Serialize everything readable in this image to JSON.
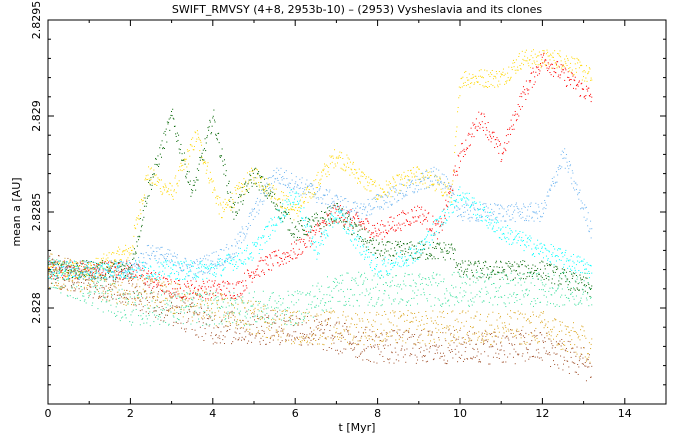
{
  "chart_data": {
    "type": "scatter",
    "title": "SWIFT_RMVSY (4+8, 2953b-10) – (2953) Vysheslavia and its clones",
    "xlabel": "t [Myr]",
    "ylabel": "mean a [AU]",
    "xlim": [
      0,
      15
    ],
    "ylim": [
      2.8275,
      2.8295
    ],
    "x_ticks": [
      0,
      2,
      4,
      6,
      8,
      10,
      12,
      14
    ],
    "x_tick_labels": [
      "0",
      "2",
      "4",
      "6",
      "8",
      "10",
      "12",
      "14"
    ],
    "y_ticks": [
      2.828,
      2.8285,
      2.829,
      2.8295
    ],
    "y_tick_labels": [
      "2.828",
      "2.8285",
      "2.829",
      "2.8295"
    ],
    "grid": false,
    "series": [
      {
        "color": "#FFD700",
        "points": [
          [
            0,
            2.8282
          ],
          [
            1,
            2.8282
          ],
          [
            2,
            2.8283
          ],
          [
            2.4,
            2.8287
          ],
          [
            3,
            2.8286
          ],
          [
            3.6,
            2.8289
          ],
          [
            4.2,
            2.8285
          ],
          [
            5,
            2.8287
          ],
          [
            6,
            2.8285
          ],
          [
            7,
            2.8288
          ],
          [
            8,
            2.8286
          ],
          [
            9,
            2.8287
          ],
          [
            9.8,
            2.8286
          ],
          [
            10,
            2.8292
          ],
          [
            11,
            2.8292
          ],
          [
            11.5,
            2.8293
          ],
          [
            12.5,
            2.8293
          ],
          [
            13.2,
            2.8292
          ]
        ]
      },
      {
        "color": "#FF0000",
        "points": [
          [
            0,
            2.8282
          ],
          [
            2,
            2.8282
          ],
          [
            3,
            2.8281
          ],
          [
            4.6,
            2.8281
          ],
          [
            5,
            2.8282
          ],
          [
            6,
            2.8283
          ],
          [
            7,
            2.8285
          ],
          [
            8,
            2.8284
          ],
          [
            9,
            2.8285
          ],
          [
            9.5,
            2.8284
          ],
          [
            10,
            2.8288
          ],
          [
            10.5,
            2.829
          ],
          [
            11,
            2.8288
          ],
          [
            11.5,
            2.8291
          ],
          [
            12,
            2.8293
          ],
          [
            13.2,
            2.8291
          ]
        ]
      },
      {
        "color": "#006400",
        "points": [
          [
            0,
            2.8282
          ],
          [
            2,
            2.8282
          ],
          [
            2.4,
            2.8286
          ],
          [
            3,
            2.829
          ],
          [
            3.5,
            2.8286
          ],
          [
            4,
            2.829
          ],
          [
            4.5,
            2.8285
          ],
          [
            5,
            2.8287
          ],
          [
            6,
            2.8284
          ],
          [
            7,
            2.8285
          ],
          [
            8,
            2.8283
          ],
          [
            9,
            2.8283
          ],
          [
            9.8,
            2.8283
          ],
          [
            10,
            2.8282
          ],
          [
            11,
            2.8282
          ],
          [
            12,
            2.8282
          ],
          [
            13.2,
            2.8281
          ]
        ]
      },
      {
        "color": "#6EB4F0",
        "points": [
          [
            0,
            2.8282
          ],
          [
            2,
            2.8282
          ],
          [
            2.5,
            2.8283
          ],
          [
            3.5,
            2.8282
          ],
          [
            4.5,
            2.8283
          ],
          [
            5.5,
            2.8287
          ],
          [
            6.5,
            2.8286
          ],
          [
            7.5,
            2.8285
          ],
          [
            8.5,
            2.8286
          ],
          [
            9.5,
            2.8287
          ],
          [
            10,
            2.8285
          ],
          [
            11,
            2.8285
          ],
          [
            12,
            2.8285
          ],
          [
            12.5,
            2.8288
          ],
          [
            13.2,
            2.8284
          ]
        ]
      },
      {
        "color": "#00FFFF",
        "points": [
          [
            0,
            2.8282
          ],
          [
            2,
            2.8282
          ],
          [
            3,
            2.8282
          ],
          [
            4,
            2.8282
          ],
          [
            5,
            2.8283
          ],
          [
            6,
            2.8286
          ],
          [
            6.5,
            2.8283
          ],
          [
            7,
            2.8285
          ],
          [
            8,
            2.8282
          ],
          [
            9,
            2.8283
          ],
          [
            10,
            2.8286
          ],
          [
            11,
            2.8284
          ],
          [
            12,
            2.8283
          ],
          [
            13.2,
            2.8282
          ]
        ]
      },
      {
        "color": "#40E0A0",
        "points": [
          [
            0,
            2.8282
          ],
          [
            1,
            2.8281
          ],
          [
            2,
            2.828
          ],
          [
            3,
            2.828
          ],
          [
            4,
            2.828
          ],
          [
            5,
            2.828
          ],
          [
            6,
            2.828
          ],
          [
            7,
            2.8281
          ],
          [
            8,
            2.8281
          ],
          [
            9,
            2.8281
          ],
          [
            10,
            2.8281
          ],
          [
            11,
            2.8281
          ],
          [
            12,
            2.8281
          ],
          [
            13.2,
            2.8281
          ]
        ]
      },
      {
        "color": "#DAA520",
        "points": [
          [
            0,
            2.8282
          ],
          [
            2,
            2.8281
          ],
          [
            4,
            2.828
          ],
          [
            6,
            2.8279
          ],
          [
            8,
            2.8279
          ],
          [
            10,
            2.8279
          ],
          [
            12,
            2.8279
          ],
          [
            13.2,
            2.8278
          ]
        ]
      },
      {
        "color": "#A0522D",
        "points": [
          [
            0,
            2.8282
          ],
          [
            2,
            2.8281
          ],
          [
            4,
            2.8279
          ],
          [
            6,
            2.8279
          ],
          [
            8,
            2.8278
          ],
          [
            10,
            2.8278
          ],
          [
            12,
            2.8278
          ],
          [
            13.2,
            2.8277
          ]
        ]
      }
    ]
  }
}
